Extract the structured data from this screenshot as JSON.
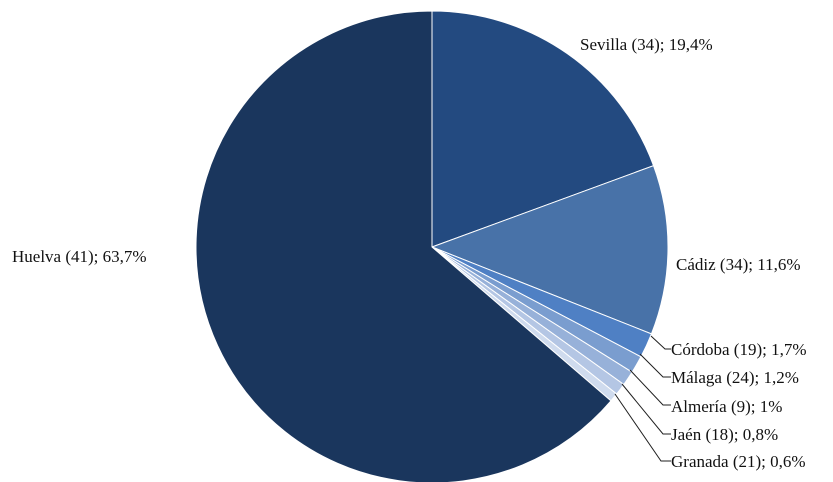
{
  "chart_data": {
    "type": "pie",
    "title": "",
    "slices": [
      {
        "name": "Huelva",
        "count": "41",
        "value": 63.7,
        "label": "Huelva (41);  63,7%",
        "color": "#1a365d"
      },
      {
        "name": "Sevilla",
        "count": "34",
        "value": 19.4,
        "label": "Sevilla (34); 19,4%",
        "color": "#234a80"
      },
      {
        "name": "Cádiz",
        "count": "34",
        "value": 11.6,
        "label": "Cádiz (34); 11,6%",
        "color": "#4872a8"
      },
      {
        "name": "Córdoba",
        "count": "19",
        "value": 1.7,
        "label": "Córdoba (19); 1,7%",
        "color": "#4f80c4"
      },
      {
        "name": "Málaga",
        "count": "24",
        "value": 1.2,
        "label": "Málaga (24); 1,2%",
        "color": "#7a9dcf"
      },
      {
        "name": "Almería",
        "count": "9",
        "value": 1,
        "label": "Almería (9); 1%",
        "color": "#97b1d9"
      },
      {
        "name": "Jaén",
        "count": "18",
        "value": 0.8,
        "label": "Jaén (18); 0,8%",
        "color": "#b4c6e4"
      },
      {
        "name": "Granada",
        "count": "21",
        "value": 0.6,
        "label": "Granada (21); 0,6%",
        "color": "#cfdbee"
      }
    ],
    "order": "clockwise from top",
    "legend": "none"
  }
}
